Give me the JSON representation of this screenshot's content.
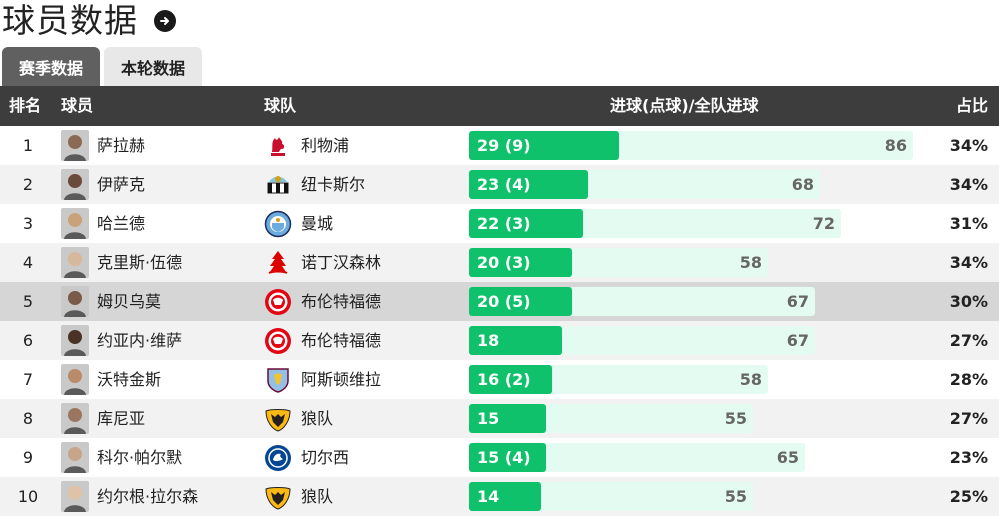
{
  "page": {
    "title": "球员数据",
    "tabs": [
      {
        "label": "赛季数据",
        "active": true
      },
      {
        "label": "本轮数据",
        "active": false
      }
    ]
  },
  "table": {
    "headers": {
      "rank": "排名",
      "player": "球员",
      "team": "球队",
      "goals": "进球(点球)/全队进球",
      "pct": "占比"
    },
    "rows": [
      {
        "rank": "1",
        "player": "萨拉赫",
        "team": "利物浦",
        "goals_label": "29 (9)",
        "goals": 29,
        "team_goals": 86,
        "pct": "34%",
        "crest": "liverpool-crest"
      },
      {
        "rank": "2",
        "player": "伊萨克",
        "team": "纽卡斯尔",
        "goals_label": "23 (4)",
        "goals": 23,
        "team_goals": 68,
        "pct": "34%",
        "crest": "newcastle-crest"
      },
      {
        "rank": "3",
        "player": "哈兰德",
        "team": "曼城",
        "goals_label": "22 (3)",
        "goals": 22,
        "team_goals": 72,
        "pct": "31%",
        "crest": "mancity-crest"
      },
      {
        "rank": "4",
        "player": "克里斯·伍德",
        "team": "诺丁汉森林",
        "goals_label": "20 (3)",
        "goals": 20,
        "team_goals": 58,
        "pct": "34%",
        "crest": "forest-crest"
      },
      {
        "rank": "5",
        "player": "姆贝乌莫",
        "team": "布伦特福德",
        "goals_label": "20 (5)",
        "goals": 20,
        "team_goals": 67,
        "pct": "30%",
        "crest": "brentford-crest"
      },
      {
        "rank": "6",
        "player": "约亚内·维萨",
        "team": "布伦特福德",
        "goals_label": "18",
        "goals": 18,
        "team_goals": 67,
        "pct": "27%",
        "crest": "brentford-crest"
      },
      {
        "rank": "7",
        "player": "沃特金斯",
        "team": "阿斯顿维拉",
        "goals_label": "16 (2)",
        "goals": 16,
        "team_goals": 58,
        "pct": "28%",
        "crest": "villa-crest"
      },
      {
        "rank": "8",
        "player": "库尼亚",
        "team": "狼队",
        "goals_label": "15",
        "goals": 15,
        "team_goals": 55,
        "pct": "27%",
        "crest": "wolves-crest"
      },
      {
        "rank": "9",
        "player": "科尔·帕尔默",
        "team": "切尔西",
        "goals_label": "15 (4)",
        "goals": 15,
        "team_goals": 65,
        "pct": "23%",
        "crest": "chelsea-crest"
      },
      {
        "rank": "10",
        "player": "约尔根·拉尔森",
        "team": "狼队",
        "goals_label": "14",
        "goals": 14,
        "team_goals": 55,
        "pct": "25%",
        "crest": "wolves-crest"
      }
    ]
  },
  "colors": {
    "header_bg": "#3d3d3d",
    "bar_goals": "#0fc16a",
    "bar_team": "#e3fbf0",
    "highlight_row": "#d6d6d6"
  }
}
